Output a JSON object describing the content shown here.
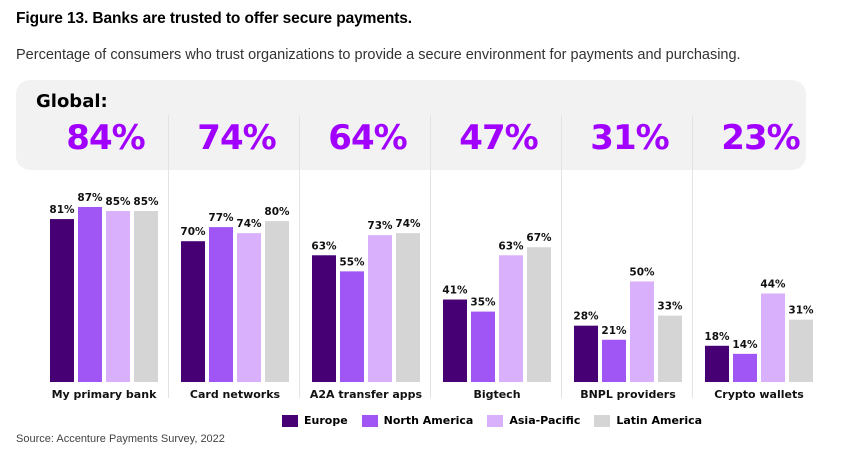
{
  "figure": {
    "title": "Figure 13. Banks are trusted to offer secure payments.",
    "subtitle": "Percentage of consumers who trust organizations to provide a secure environment for payments and purchasing.",
    "global_label": "Global:",
    "source": "Source: Accenture Payments Survey, 2022"
  },
  "colors": {
    "accent": "#a100ff",
    "panel_bg": "#f2f2f2",
    "Europe": "#460073",
    "North America": "#a055f5",
    "Asia-Pacific": "#d9b0fb",
    "Latin America": "#d5d5d5"
  },
  "chart_data": {
    "type": "bar",
    "title": "Figure 13. Banks are trusted to offer secure payments.",
    "subtitle": "Percentage of consumers who trust organizations to provide a secure environment for payments and purchasing.",
    "xlabel": "",
    "ylabel": "",
    "ylim": [
      0,
      100
    ],
    "grid": false,
    "legend_position": "bottom",
    "categories": [
      "My primary bank",
      "Card networks",
      "A2A transfer apps",
      "Bigtech",
      "BNPL providers",
      "Crypto wallets"
    ],
    "global_values": [
      "84%",
      "74%",
      "64%",
      "47%",
      "31%",
      "23%"
    ],
    "series": [
      {
        "name": "Europe",
        "values": [
          81,
          70,
          63,
          41,
          28,
          18
        ]
      },
      {
        "name": "North America",
        "values": [
          87,
          77,
          55,
          35,
          21,
          14
        ]
      },
      {
        "name": "Asia-Pacific",
        "values": [
          85,
          74,
          73,
          63,
          50,
          44
        ]
      },
      {
        "name": "Latin America",
        "values": [
          85,
          80,
          74,
          67,
          33,
          31
        ]
      }
    ],
    "value_suffix": "%"
  }
}
